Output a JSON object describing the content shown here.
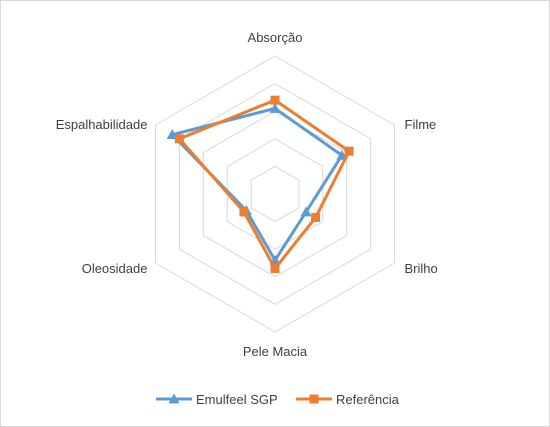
{
  "chart_data": {
    "type": "radar",
    "categories": [
      "Absorção",
      "Filme",
      "Brilho",
      "Pele Macia",
      "Oleosidade",
      "Espalhabilidade"
    ],
    "rmax": 5,
    "levels": 5,
    "series": [
      {
        "name": "Emulfeel SGP",
        "values": [
          3.1,
          2.8,
          1.3,
          2.4,
          1.2,
          4.3
        ],
        "color": "#5b9bd5",
        "marker": "triangle"
      },
      {
        "name": "Referência",
        "values": [
          3.4,
          3.1,
          1.7,
          2.7,
          1.3,
          4.0
        ],
        "color": "#ed7d31",
        "marker": "square"
      }
    ]
  }
}
